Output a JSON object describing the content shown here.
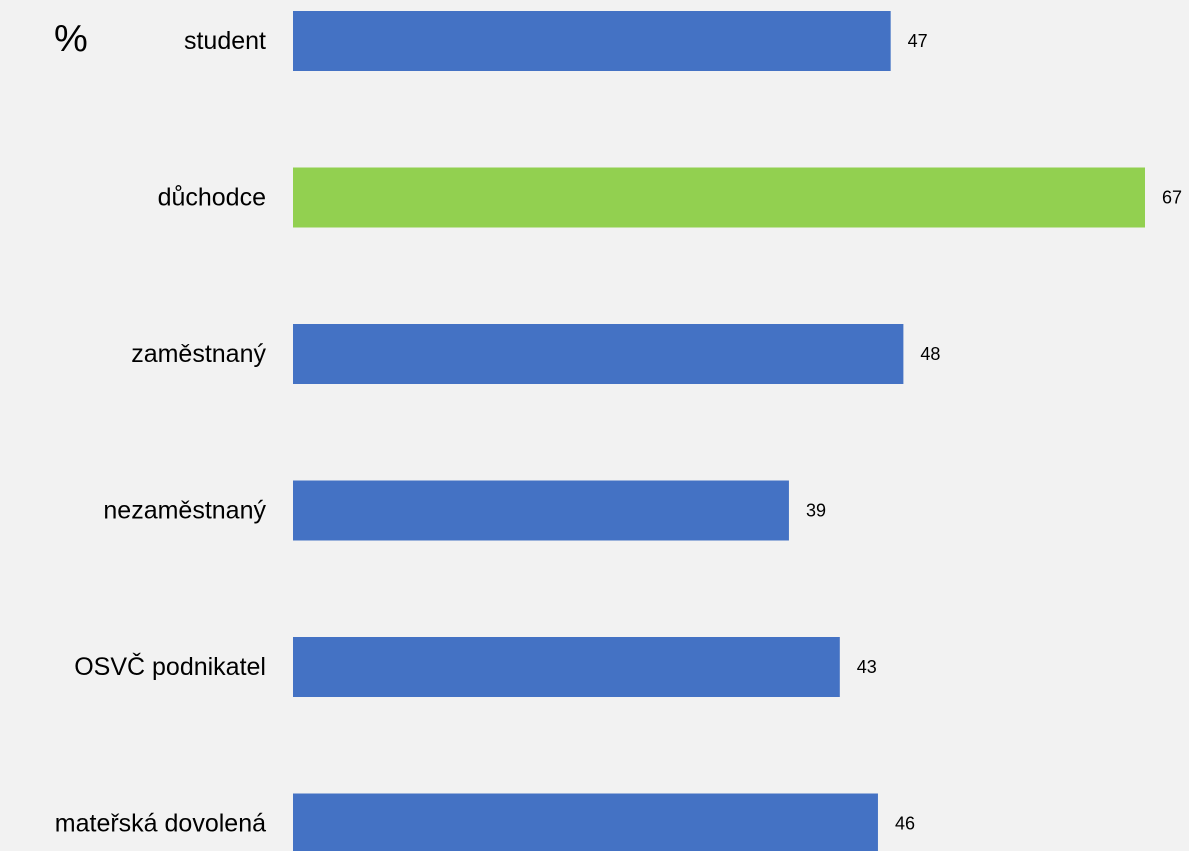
{
  "chart_data": {
    "type": "bar",
    "orientation": "horizontal",
    "unit_label": "%",
    "categories": [
      "student",
      "důchodce",
      "zaměstnaný",
      "nezaměstnaný",
      "OSVČ podnikatel",
      "mateřská dovolená"
    ],
    "values": [
      47,
      67,
      48,
      39,
      43,
      46
    ],
    "data_labels": [
      "47",
      "67",
      "48",
      "39",
      "43",
      "46"
    ],
    "bar_colors": [
      "#4472c4",
      "#92d050",
      "#4472c4",
      "#4472c4",
      "#4472c4",
      "#4472c4"
    ],
    "highlight_category": "důchodce",
    "xlim": [
      0,
      67
    ],
    "grid": false,
    "legend": "none"
  },
  "colors": {
    "background": "#f2f2f2",
    "default_bar": "#4472c4",
    "highlight_bar": "#92d050",
    "text": "#000000"
  }
}
